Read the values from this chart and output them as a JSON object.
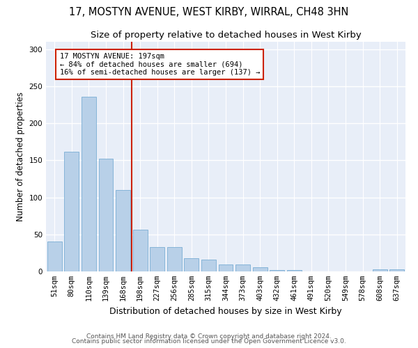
{
  "title": "17, MOSTYN AVENUE, WEST KIRBY, WIRRAL, CH48 3HN",
  "subtitle": "Size of property relative to detached houses in West Kirby",
  "xlabel": "Distribution of detached houses by size in West Kirby",
  "ylabel": "Number of detached properties",
  "categories": [
    "51sqm",
    "80sqm",
    "110sqm",
    "139sqm",
    "168sqm",
    "198sqm",
    "227sqm",
    "256sqm",
    "285sqm",
    "315sqm",
    "344sqm",
    "373sqm",
    "403sqm",
    "432sqm",
    "461sqm",
    "491sqm",
    "520sqm",
    "549sqm",
    "578sqm",
    "608sqm",
    "637sqm"
  ],
  "values": [
    40,
    162,
    236,
    152,
    110,
    56,
    33,
    33,
    18,
    16,
    9,
    9,
    6,
    2,
    2,
    0,
    0,
    0,
    0,
    3,
    3
  ],
  "bar_color": "#b8d0e8",
  "bar_edge_color": "#7aaed4",
  "bar_width": 0.85,
  "vline_color": "#cc2200",
  "annotation_text": "17 MOSTYN AVENUE: 197sqm\n← 84% of detached houses are smaller (694)\n16% of semi-detached houses are larger (137) →",
  "annotation_box_color": "#cc2200",
  "ylim": [
    0,
    310
  ],
  "yticks": [
    0,
    50,
    100,
    150,
    200,
    250,
    300
  ],
  "plot_bg_color": "#e8eef8",
  "fig_bg_color": "#ffffff",
  "grid_color": "#ffffff",
  "title_fontsize": 10.5,
  "subtitle_fontsize": 9.5,
  "xlabel_fontsize": 9,
  "ylabel_fontsize": 8.5,
  "tick_fontsize": 7.5,
  "footer_line1": "Contains HM Land Registry data © Crown copyright and database right 2024.",
  "footer_line2": "Contains public sector information licensed under the Open Government Licence v3.0.",
  "footer_fontsize": 6.5
}
